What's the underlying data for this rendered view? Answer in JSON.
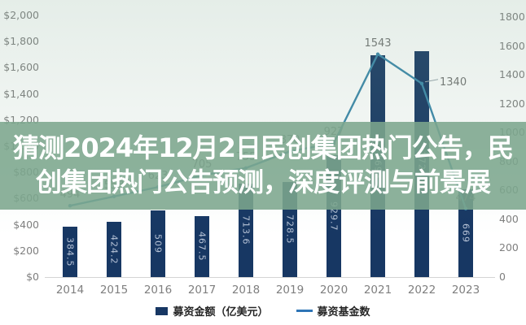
{
  "overlay": {
    "line1": "猜测2024年12月2日民创集团热门公告，民",
    "line2": "创集团热门公告预测，深度评测与前景展",
    "band_rgba": "rgba(124,166,141,0.88)",
    "text_color": "#ffffff"
  },
  "chart_data": {
    "type": "combo-bar-line",
    "categories": [
      "2014",
      "2015",
      "2016",
      "2017",
      "2018",
      "2019",
      "2020",
      "2021",
      "2022",
      "2023"
    ],
    "series": [
      {
        "name": "募资金额（亿美元）",
        "type": "bar",
        "axis": "left",
        "color": "#173763",
        "values": [
          384.5,
          424.2,
          509,
          467.5,
          713.6,
          728.5,
          929.7,
          1693,
          1724,
          669
        ],
        "value_labels": [
          "384.5",
          "424.2",
          "509",
          "467.5",
          "713.6",
          "728.5",
          "929.7",
          "1693",
          "1724",
          "669"
        ]
      },
      {
        "name": "募资基金数",
        "type": "line",
        "axis": "right",
        "color": "#3b87aa",
        "values": [
          494,
          558,
          623,
          705,
          755,
          870,
          927,
          1543,
          1340,
          474
        ],
        "value_labels": [
          "494",
          "558",
          "623",
          "705",
          "755",
          "870",
          "927",
          "1543",
          "1340",
          "474"
        ],
        "label_sides": [
          "above",
          "above",
          "above",
          "above",
          "above",
          "above",
          "above",
          "above",
          "right",
          "above"
        ]
      }
    ],
    "axes": {
      "left": {
        "min": 0,
        "max": 2000,
        "step": 200,
        "prefix": "$",
        "thousands_comma": true
      },
      "right": {
        "min": 0,
        "max": 1800,
        "step": 200,
        "prefix": ""
      }
    },
    "grid": false,
    "legend": {
      "position": "bottom",
      "items": [
        {
          "label": "募资金额（亿美元）",
          "marker": "square",
          "color": "#173763"
        },
        {
          "label": "募资基金数",
          "marker": "line",
          "color": "#2e75b6"
        }
      ]
    },
    "label_color": "#737373",
    "axis_label_color": "#7f7f7f"
  }
}
